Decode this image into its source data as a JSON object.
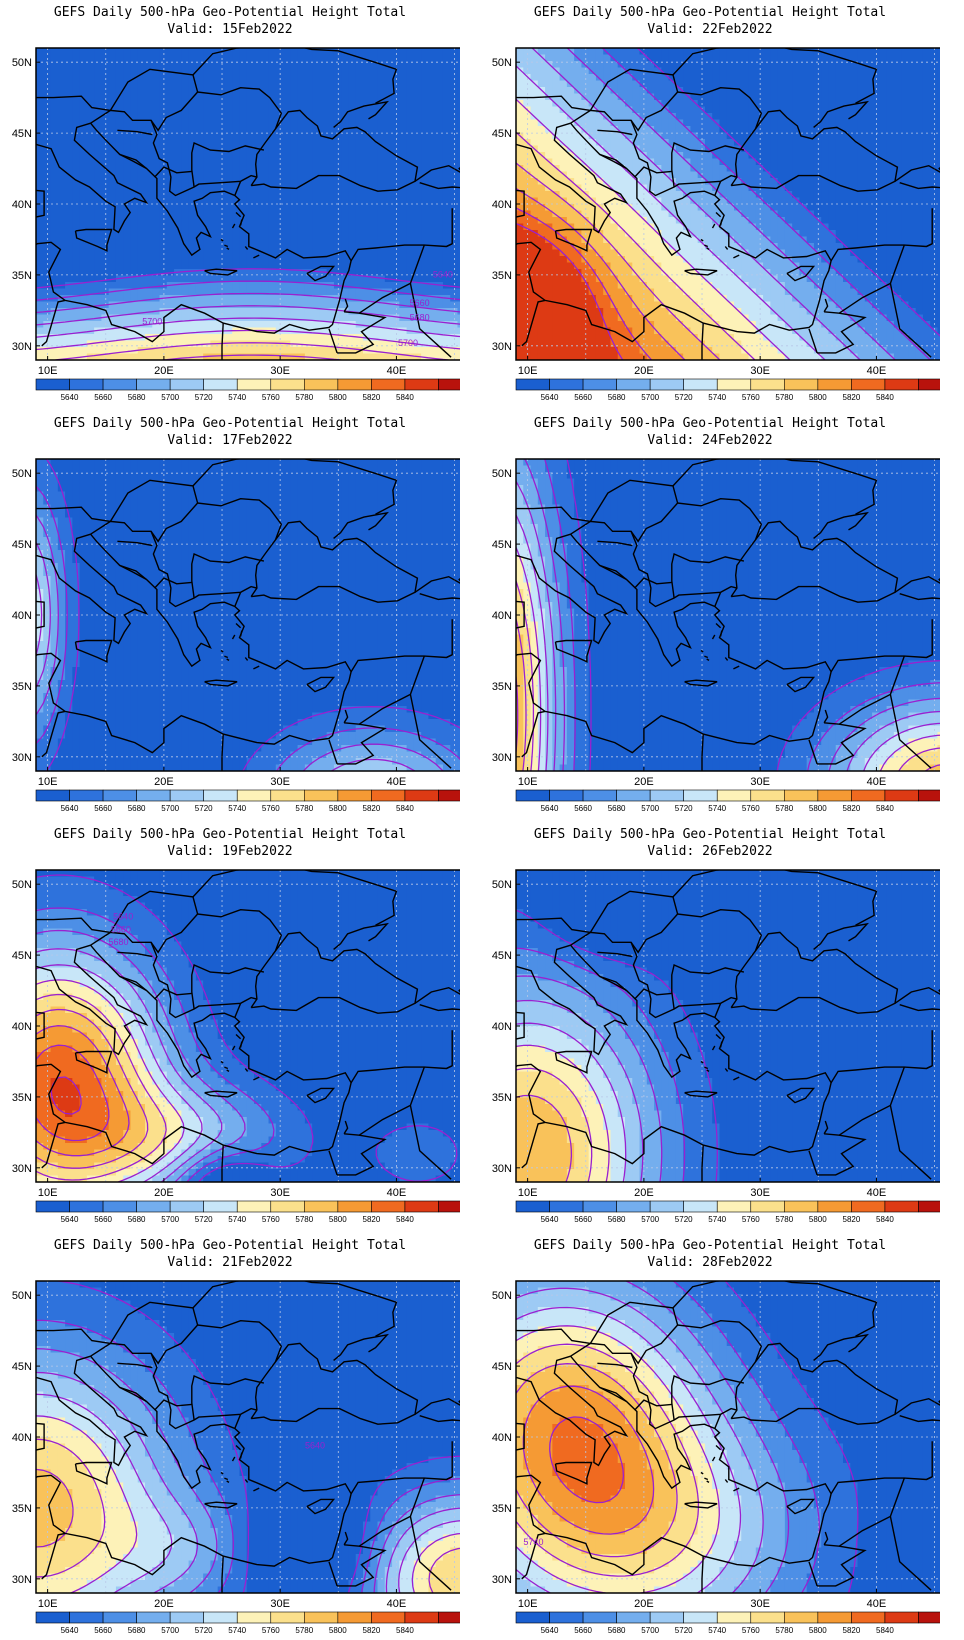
{
  "figure": {
    "panels": [
      {
        "title": "GEFS Daily 500-hPa Geo-Potential Height Total",
        "valid": "Valid: 15Feb2022",
        "labels": [
          "5640",
          "5660",
          "5680",
          "5700",
          "5700"
        ]
      },
      {
        "title": "GEFS Daily 500-hPa Geo-Potential Height Total",
        "valid": "Valid: 22Feb2022",
        "labels": []
      },
      {
        "title": "GEFS Daily 500-hPa Geo-Potential Height Total",
        "valid": "Valid: 17Feb2022",
        "labels": []
      },
      {
        "title": "GEFS Daily 500-hPa Geo-Potential Height Total",
        "valid": "Valid: 24Feb2022",
        "labels": []
      },
      {
        "title": "GEFS Daily 500-hPa Geo-Potential Height Total",
        "valid": "Valid: 19Feb2022",
        "labels": [
          "5640",
          "5660",
          "5680"
        ]
      },
      {
        "title": "GEFS Daily 500-hPa Geo-Potential Height Total",
        "valid": "Valid: 26Feb2022",
        "labels": []
      },
      {
        "title": "GEFS Daily 500-hPa Geo-Potential Height Total",
        "valid": "Valid: 21Feb2022",
        "labels": [
          "5640"
        ]
      },
      {
        "title": "GEFS Daily 500-hPa Geo-Potential Height Total",
        "valid": "Valid: 28Feb2022",
        "labels": [
          "5740"
        ]
      }
    ],
    "lat_ticks": [
      "30N",
      "35N",
      "40N",
      "45N",
      "50N"
    ],
    "lon_ticks": [
      "10E",
      "20E",
      "30E",
      "40E"
    ],
    "colorbar": {
      "labels": [
        "5640",
        "5660",
        "5680",
        "5700",
        "5720",
        "5740",
        "5760",
        "5780",
        "5800",
        "5820",
        "5840"
      ],
      "colors": [
        "#1a5fd0",
        "#2e72dc",
        "#4d8fe6",
        "#74aeee",
        "#9dcaf4",
        "#c8e6f8",
        "#fdf2b8",
        "#fbe08c",
        "#f9c25a",
        "#f59a34",
        "#f06a20",
        "#dd3a14",
        "#b8120c"
      ]
    },
    "colors": {
      "contour": "#9a20d0",
      "coast": "#000000",
      "grid": "#b8c8e8"
    }
  }
}
